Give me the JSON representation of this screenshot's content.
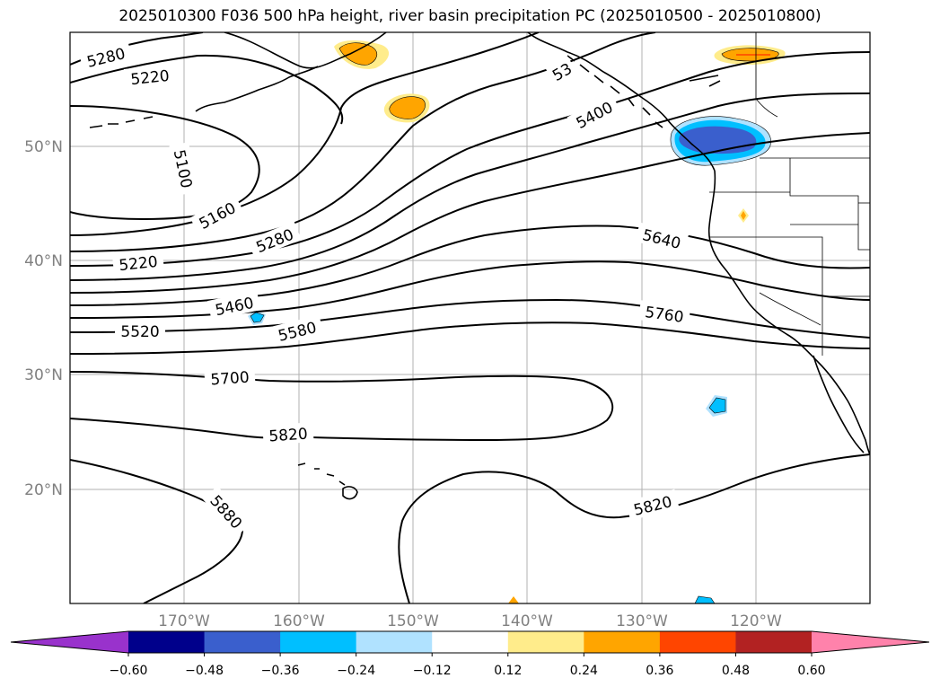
{
  "title": "2025010300 F036 500 hPa height, river basin precipitation PC (2025010500 - 2025010800)",
  "map": {
    "lat_labels": [
      "50°N",
      "40°N",
      "30°N",
      "20°N"
    ],
    "lon_labels": [
      "170°W",
      "160°W",
      "150°W",
      "140°W",
      "130°W",
      "120°W"
    ],
    "contour_labels": [
      "5280",
      "5220",
      "5100",
      "5160",
      "5280",
      "5220",
      "5460",
      "5520",
      "5580",
      "5700",
      "5820",
      "5880",
      "5400",
      "5640",
      "5760",
      "5820"
    ]
  },
  "colorbar": {
    "colors": [
      "#9932cc",
      "#00008b",
      "#3a5fcd",
      "#00bfff",
      "#b0e2ff",
      "#ffffff",
      "#ffec8b",
      "#ffa500",
      "#ff4500",
      "#b22222",
      "#ff82ab"
    ],
    "ticks": [
      "−0.60",
      "−0.48",
      "−0.36",
      "−0.24",
      "−0.12",
      "0.12",
      "0.24",
      "0.36",
      "0.48",
      "0.60"
    ]
  }
}
